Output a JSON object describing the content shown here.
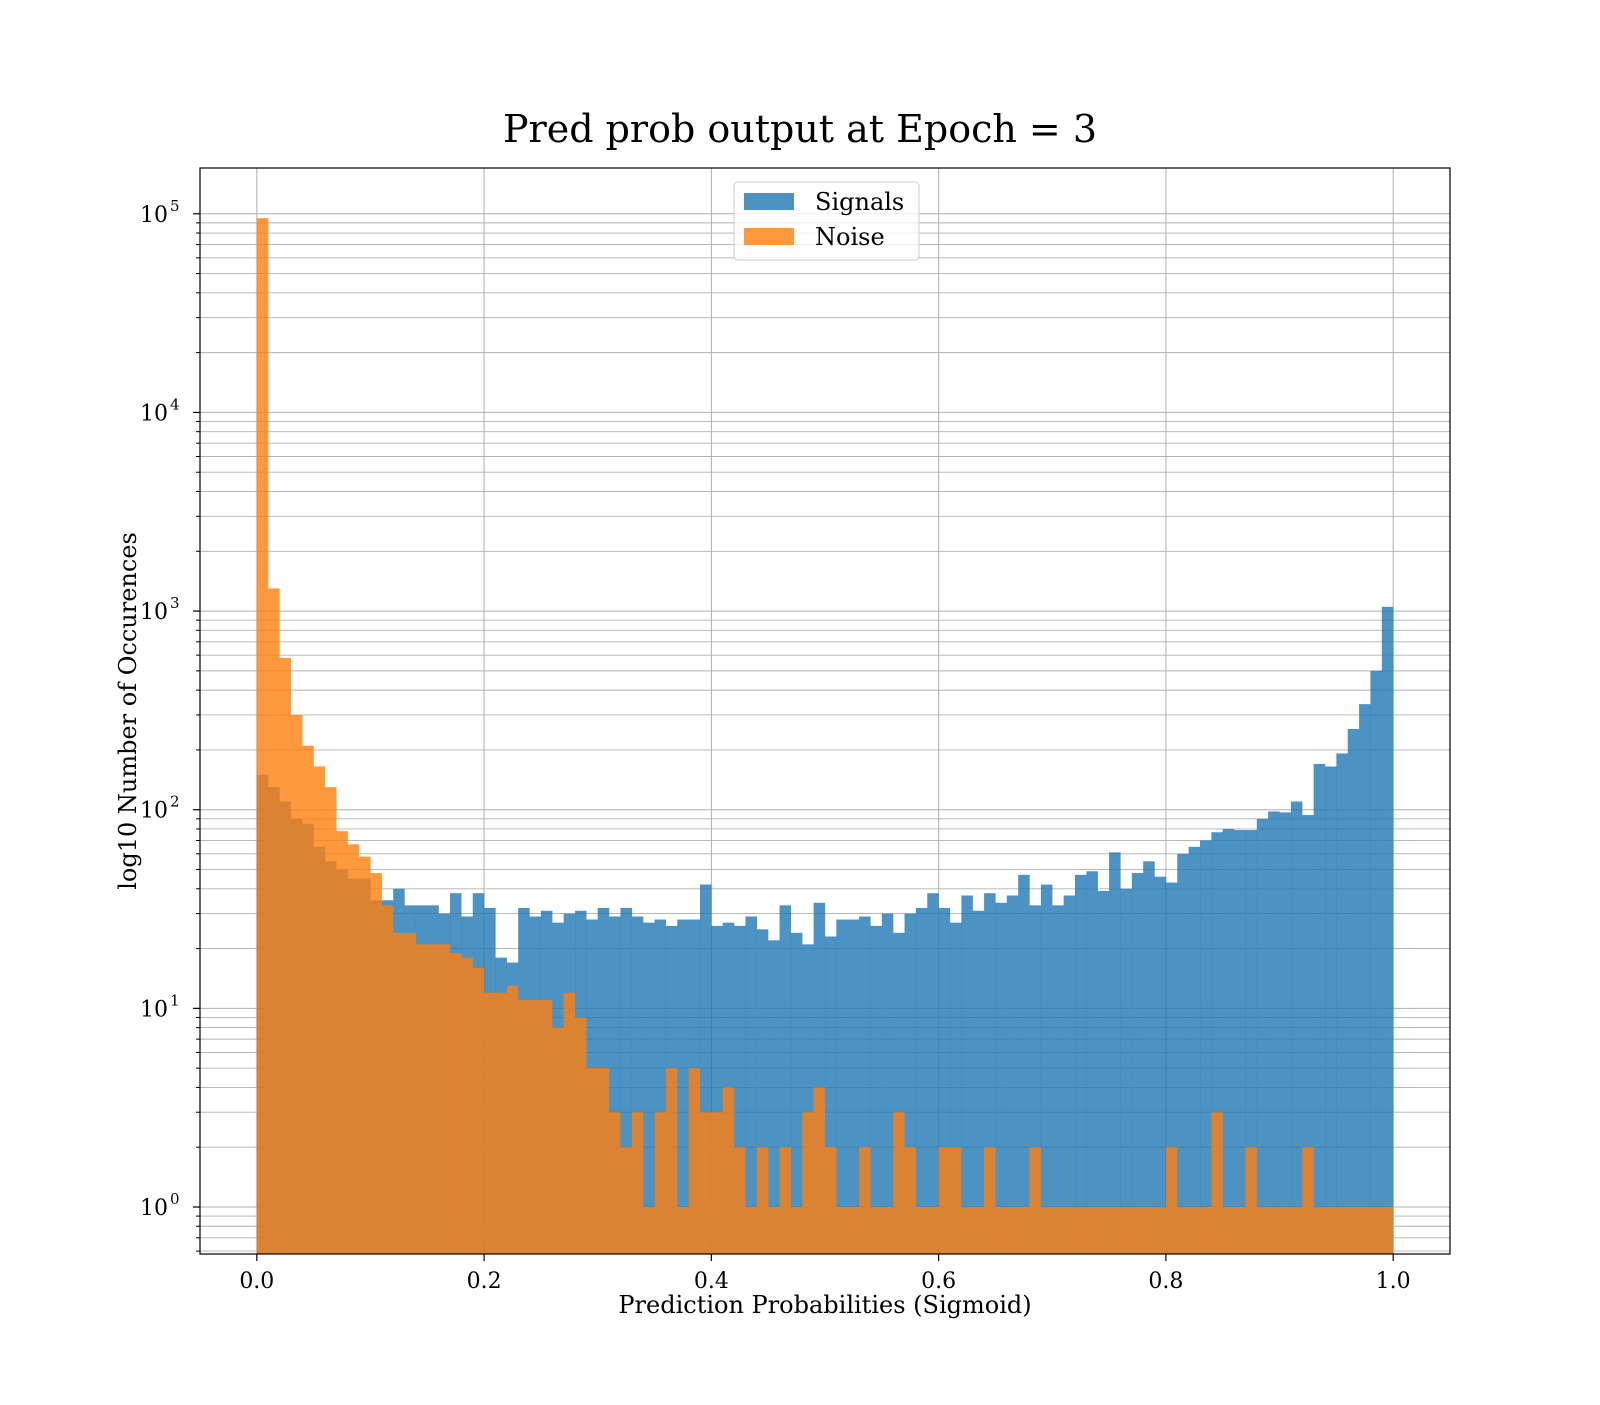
{
  "chart_data": {
    "type": "bar",
    "title": "Pred prob output at Epoch = 3",
    "xlabel": "Prediction Probabilities (Sigmoid)",
    "ylabel": "log10 Number of Occurences",
    "xlim": [
      -0.05,
      1.05
    ],
    "ylim": [
      0.58,
      170000
    ],
    "y_scale": "log",
    "grid": true,
    "legend_position": "top-center",
    "bins": 100,
    "bin_range": [
      0,
      1
    ],
    "x_ticks": [
      0.0,
      0.2,
      0.4,
      0.6,
      0.8,
      1.0
    ],
    "x_tick_labels": [
      "0.0",
      "0.2",
      "0.4",
      "0.6",
      "0.8",
      "1.0"
    ],
    "y_ticks": [
      1,
      10,
      100,
      1000,
      10000,
      100000
    ],
    "y_tick_labels": [
      {
        "base": "10",
        "exp": "0"
      },
      {
        "base": "10",
        "exp": "1"
      },
      {
        "base": "10",
        "exp": "2"
      },
      {
        "base": "10",
        "exp": "3"
      },
      {
        "base": "10",
        "exp": "4"
      },
      {
        "base": "10",
        "exp": "5"
      }
    ],
    "series": [
      {
        "name": "Signals",
        "color": "#1f77b4",
        "opacity": 0.8,
        "values": [
          150,
          130,
          110,
          90,
          85,
          65,
          55,
          50,
          45,
          45,
          35,
          35,
          40,
          33,
          33,
          33,
          30,
          38,
          29,
          38,
          32,
          18,
          17,
          32,
          29,
          31,
          27,
          30,
          31,
          28,
          32,
          29,
          32,
          29,
          27,
          28,
          26,
          28,
          28,
          42,
          26,
          27,
          26,
          29,
          25,
          22,
          33,
          24,
          21,
          34,
          23,
          28,
          28,
          29,
          26,
          30,
          24,
          30,
          32,
          38,
          32,
          27,
          37,
          31,
          38,
          34,
          37,
          47,
          33,
          42,
          33,
          37,
          47,
          49,
          39,
          61,
          40,
          48,
          55,
          46,
          43,
          60,
          65,
          70,
          77,
          80,
          79,
          79,
          90,
          98,
          97,
          110,
          94,
          170,
          165,
          192,
          255,
          340,
          500,
          1050
        ]
      },
      {
        "name": "Noise",
        "color": "#ff7f0e",
        "opacity": 0.8,
        "values": [
          95000,
          1300,
          580,
          300,
          210,
          165,
          130,
          78,
          67,
          58,
          48,
          33,
          24,
          24,
          21,
          21,
          21,
          19,
          18,
          16,
          12,
          12,
          13,
          11,
          11,
          11,
          8,
          12,
          9,
          5,
          5,
          3,
          2,
          3,
          1,
          3,
          5,
          1,
          5,
          3,
          3,
          4,
          2,
          1,
          2,
          1,
          2,
          1,
          3,
          4,
          2,
          1,
          1,
          2,
          1,
          1,
          3,
          2,
          1,
          1,
          2,
          2,
          1,
          1,
          2,
          1,
          1,
          1,
          2,
          1,
          1,
          1,
          1,
          1,
          1,
          1,
          1,
          1,
          1,
          1,
          2,
          1,
          1,
          1,
          3,
          1,
          1,
          2,
          1,
          1,
          1,
          1,
          2,
          1,
          1,
          1,
          1,
          1,
          1,
          1
        ]
      }
    ]
  }
}
